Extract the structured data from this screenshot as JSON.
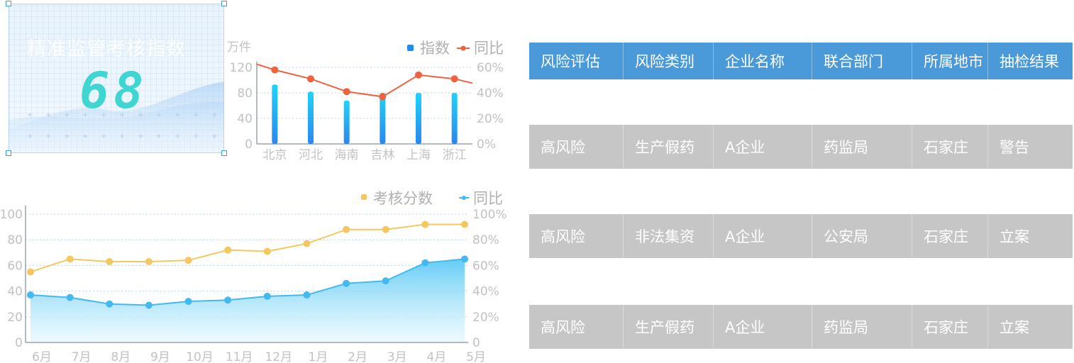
{
  "index_card": {
    "title": "精准监管考核指数",
    "value": "68"
  },
  "chart_data": [
    {
      "type": "bar",
      "unit_label": "万件",
      "categories": [
        "北京",
        "河北",
        "海南",
        "吉林",
        "上海",
        "浙江"
      ],
      "series": [
        {
          "name": "指数",
          "type": "bar",
          "values": [
            93,
            82,
            68,
            80,
            80,
            80
          ],
          "color": "#1e8ff0"
        },
        {
          "name": "同比",
          "type": "line",
          "values": [
            58,
            51,
            41,
            37,
            54,
            51
          ],
          "color": "#f0623e"
        }
      ],
      "y_left": {
        "min": 0,
        "max": 120,
        "ticks": [
          "0",
          "40",
          "80",
          "120"
        ]
      },
      "y_right": {
        "min": 0,
        "max": 60,
        "ticks": [
          "0%",
          "20%",
          "40%",
          "60%"
        ]
      },
      "legend_position": "top-right",
      "grid": true
    },
    {
      "type": "line",
      "categories": [
        "6月",
        "7月",
        "8月",
        "9月",
        "10月",
        "11月",
        "12月",
        "1月",
        "2月",
        "3月",
        "4月",
        "5月"
      ],
      "series": [
        {
          "name": "考核分数",
          "values": [
            55,
            65,
            63,
            63,
            64,
            72,
            71,
            77,
            88,
            88,
            92,
            92
          ],
          "color": "#f5c760"
        },
        {
          "name": "同比",
          "values": [
            37,
            35,
            30,
            29,
            32,
            33,
            36,
            37,
            46,
            48,
            62,
            65
          ],
          "color": "#43b9f0",
          "area": true
        }
      ],
      "y_left": {
        "min": 0,
        "max": 100,
        "ticks": [
          "0",
          "20",
          "40",
          "60",
          "80",
          "100"
        ]
      },
      "y_right": {
        "min": 0,
        "max": 100,
        "ticks": [
          "0",
          "20%",
          "40%",
          "60%",
          "80%",
          "100%"
        ]
      },
      "legend_position": "top-right",
      "grid": true
    }
  ],
  "table": {
    "headers": [
      "风险评估",
      "风险类别",
      "企业名称",
      "联合部门",
      "所属地市",
      "抽检结果"
    ],
    "rows": [
      [
        "高风险",
        "生产假药",
        "A企业",
        "药监局",
        "石家庄",
        "警告"
      ],
      [
        "高风险",
        "非法集资",
        "A企业",
        "公安局",
        "石家庄",
        "立案"
      ],
      [
        "高风险",
        "生产假药",
        "A企业",
        "药监局",
        "石家庄",
        "立案"
      ]
    ]
  }
}
